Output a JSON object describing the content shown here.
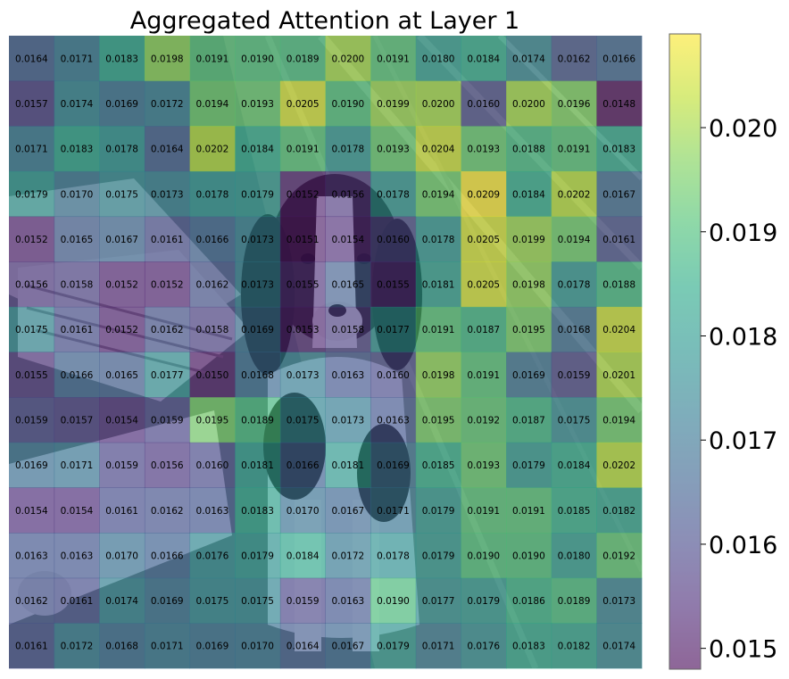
{
  "chart_data": {
    "type": "heatmap",
    "title": "Aggregated Attention at Layer 1",
    "rows": 14,
    "cols": 14,
    "values": [
      [
        0.0164,
        0.0171,
        0.0183,
        0.0198,
        0.0191,
        0.019,
        0.0189,
        0.02,
        0.0191,
        0.018,
        0.0184,
        0.0174,
        0.0162,
        0.0166
      ],
      [
        0.0157,
        0.0174,
        0.0169,
        0.0172,
        0.0194,
        0.0193,
        0.0205,
        0.019,
        0.0199,
        0.02,
        0.016,
        0.02,
        0.0196,
        0.0148
      ],
      [
        0.0171,
        0.0183,
        0.0178,
        0.0164,
        0.0202,
        0.0184,
        0.0191,
        0.0178,
        0.0193,
        0.0204,
        0.0193,
        0.0188,
        0.0191,
        0.0183
      ],
      [
        0.0179,
        0.017,
        0.0175,
        0.0173,
        0.0178,
        0.0179,
        0.0152,
        0.0156,
        0.0178,
        0.0194,
        0.0209,
        0.0184,
        0.0202,
        0.0167
      ],
      [
        0.0152,
        0.0165,
        0.0167,
        0.0161,
        0.0166,
        0.0173,
        0.0151,
        0.0154,
        0.016,
        0.0178,
        0.0205,
        0.0199,
        0.0194,
        0.0161
      ],
      [
        0.0156,
        0.0158,
        0.0152,
        0.0152,
        0.0162,
        0.0173,
        0.0155,
        0.0165,
        0.0155,
        0.0181,
        0.0205,
        0.0198,
        0.0178,
        0.0188
      ],
      [
        0.0175,
        0.0161,
        0.0152,
        0.0162,
        0.0158,
        0.0169,
        0.0153,
        0.0158,
        0.0177,
        0.0191,
        0.0187,
        0.0195,
        0.0168,
        0.0204
      ],
      [
        0.0155,
        0.0166,
        0.0165,
        0.0177,
        0.015,
        0.0168,
        0.0173,
        0.0163,
        0.016,
        0.0198,
        0.0191,
        0.0169,
        0.0159,
        0.0201
      ],
      [
        0.0159,
        0.0157,
        0.0154,
        0.0159,
        0.0195,
        0.0189,
        0.0175,
        0.0173,
        0.0163,
        0.0195,
        0.0192,
        0.0187,
        0.0175,
        0.0194
      ],
      [
        0.0169,
        0.0171,
        0.0159,
        0.0156,
        0.016,
        0.0181,
        0.0166,
        0.0181,
        0.0169,
        0.0185,
        0.0193,
        0.0179,
        0.0184,
        0.0202
      ],
      [
        0.0154,
        0.0154,
        0.0161,
        0.0162,
        0.0163,
        0.0183,
        0.017,
        0.0167,
        0.0171,
        0.0179,
        0.0191,
        0.0191,
        0.0185,
        0.0182
      ],
      [
        0.0163,
        0.0163,
        0.017,
        0.0166,
        0.0176,
        0.0179,
        0.0184,
        0.0172,
        0.0178,
        0.0179,
        0.019,
        0.019,
        0.018,
        0.0192
      ],
      [
        0.0162,
        0.0161,
        0.0174,
        0.0169,
        0.0175,
        0.0175,
        0.0159,
        0.0163,
        0.019,
        0.0177,
        0.0179,
        0.0186,
        0.0189,
        0.0173
      ],
      [
        0.0161,
        0.0172,
        0.0168,
        0.0171,
        0.0169,
        0.017,
        0.0164,
        0.0167,
        0.0179,
        0.0171,
        0.0176,
        0.0183,
        0.0182,
        0.0174
      ]
    ],
    "colorbar": {
      "colormap": "viridis",
      "vmin": 0.0148,
      "vmax": 0.0209,
      "ticks": [
        0.015,
        0.016,
        0.017,
        0.018,
        0.019,
        0.02
      ],
      "tick_labels": [
        "0.015",
        "0.016",
        "0.017",
        "0.018",
        "0.019",
        "0.020"
      ]
    },
    "overlay_opacity": 0.6,
    "background_image": "black-and-white spaniel dog sitting on a wooden floor beside a stack of papers",
    "xlabel": "",
    "ylabel": "",
    "grid": false
  }
}
